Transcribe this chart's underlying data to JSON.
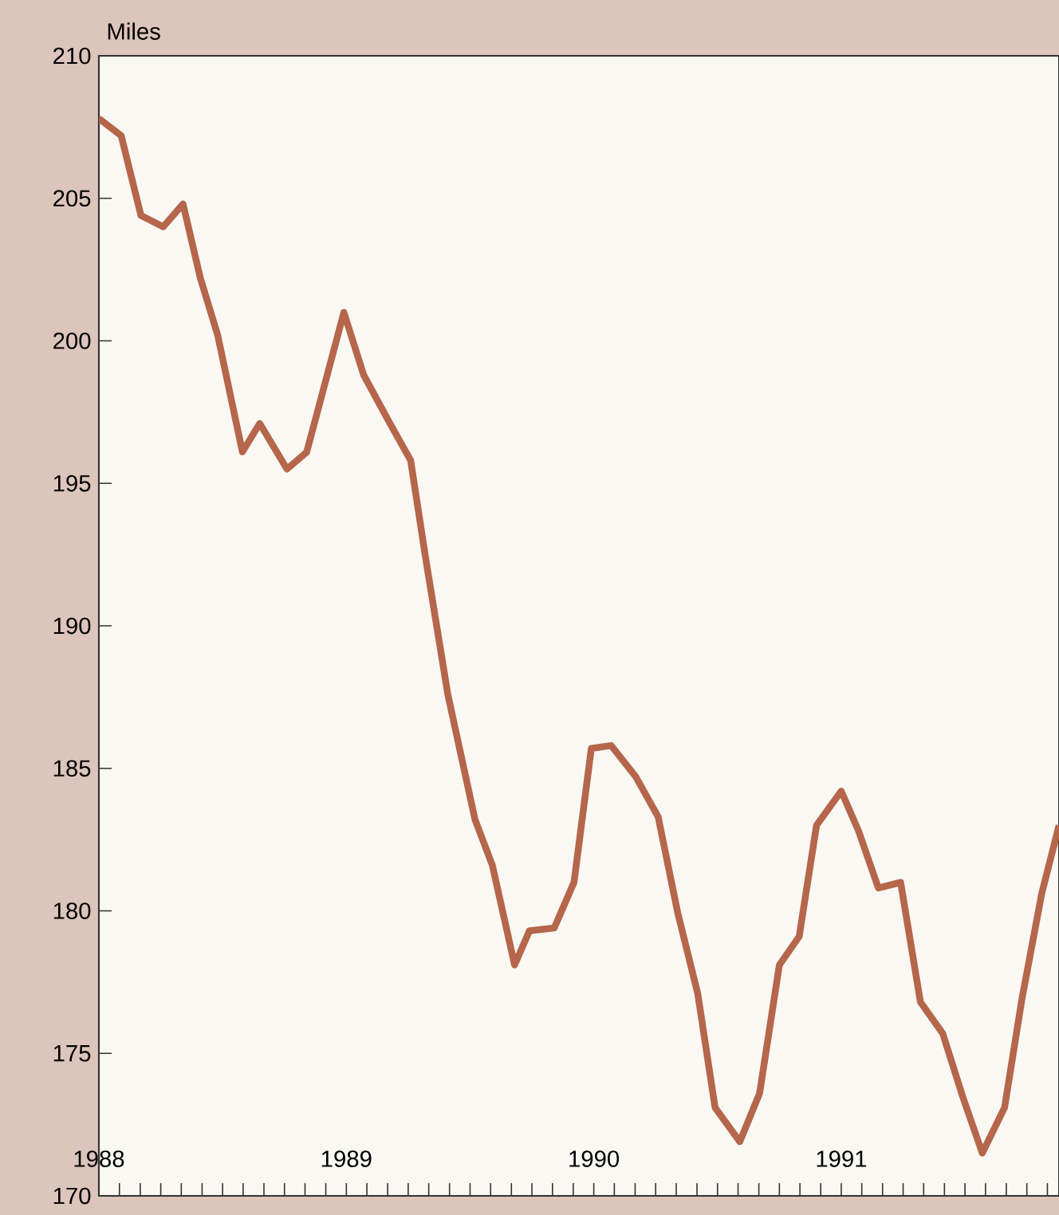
{
  "chart_data": {
    "type": "line",
    "ylabel": "Miles",
    "x": [
      1988.0,
      1988.09,
      1988.17,
      1988.26,
      1988.34,
      1988.41,
      1988.48,
      1988.58,
      1988.65,
      1988.76,
      1988.84,
      1988.99,
      1989.07,
      1989.17,
      1989.26,
      1989.32,
      1989.41,
      1989.52,
      1989.59,
      1989.68,
      1989.74,
      1989.84,
      1989.92,
      1989.99,
      1990.07,
      1990.17,
      1990.26,
      1990.34,
      1990.42,
      1990.49,
      1990.59,
      1990.67,
      1990.75,
      1990.83,
      1990.9,
      1991.0,
      1991.07,
      1991.15,
      1991.24,
      1991.32,
      1991.41,
      1991.49,
      1991.57,
      1991.66,
      1991.73,
      1991.81,
      1991.88
    ],
    "series": [
      {
        "color": "#b5664b",
        "values": [
          207.8,
          207.2,
          204.4,
          204.0,
          204.8,
          202.2,
          200.2,
          196.1,
          197.1,
          195.5,
          196.1,
          201.0,
          198.8,
          197.2,
          195.8,
          192.4,
          187.6,
          183.2,
          181.6,
          178.1,
          179.3,
          179.4,
          181.0,
          185.7,
          185.8,
          184.7,
          183.3,
          179.9,
          177.1,
          173.1,
          171.9,
          173.6,
          178.1,
          179.1,
          183.0,
          184.2,
          182.8,
          180.8,
          181.0,
          176.8,
          175.7,
          173.5,
          171.5,
          173.1,
          176.9,
          180.6,
          183.0
        ]
      }
    ],
    "xlim": [
      1988.0,
      1991.88
    ],
    "ylim": [
      170,
      210
    ],
    "yticks": [
      170,
      175,
      180,
      185,
      190,
      195,
      200,
      205,
      210
    ],
    "xticks": [
      {
        "value": 1988.0,
        "label": "1988"
      },
      {
        "value": 1988.083,
        "label": null
      },
      {
        "value": 1988.167,
        "label": null
      },
      {
        "value": 1988.25,
        "label": null
      },
      {
        "value": 1988.333,
        "label": null
      },
      {
        "value": 1988.417,
        "label": null
      },
      {
        "value": 1988.5,
        "label": null
      },
      {
        "value": 1988.583,
        "label": null
      },
      {
        "value": 1988.667,
        "label": null
      },
      {
        "value": 1988.75,
        "label": null
      },
      {
        "value": 1988.833,
        "label": null
      },
      {
        "value": 1988.917,
        "label": null
      },
      {
        "value": 1989.0,
        "label": "1989"
      },
      {
        "value": 1989.083,
        "label": null
      },
      {
        "value": 1989.167,
        "label": null
      },
      {
        "value": 1989.25,
        "label": null
      },
      {
        "value": 1989.333,
        "label": null
      },
      {
        "value": 1989.417,
        "label": null
      },
      {
        "value": 1989.5,
        "label": null
      },
      {
        "value": 1989.583,
        "label": null
      },
      {
        "value": 1989.667,
        "label": null
      },
      {
        "value": 1989.75,
        "label": null
      },
      {
        "value": 1989.833,
        "label": null
      },
      {
        "value": 1989.917,
        "label": null
      },
      {
        "value": 1990.0,
        "label": "1990"
      },
      {
        "value": 1990.083,
        "label": null
      },
      {
        "value": 1990.167,
        "label": null
      },
      {
        "value": 1990.25,
        "label": null
      },
      {
        "value": 1990.333,
        "label": null
      },
      {
        "value": 1990.417,
        "label": null
      },
      {
        "value": 1990.5,
        "label": null
      },
      {
        "value": 1990.583,
        "label": null
      },
      {
        "value": 1990.667,
        "label": null
      },
      {
        "value": 1990.75,
        "label": null
      },
      {
        "value": 1990.833,
        "label": null
      },
      {
        "value": 1990.917,
        "label": null
      },
      {
        "value": 1991.0,
        "label": "1991"
      },
      {
        "value": 1991.083,
        "label": null
      },
      {
        "value": 1991.167,
        "label": null
      },
      {
        "value": 1991.25,
        "label": null
      },
      {
        "value": 1991.333,
        "label": null
      },
      {
        "value": 1991.417,
        "label": null
      },
      {
        "value": 1991.5,
        "label": null
      },
      {
        "value": 1991.583,
        "label": null
      },
      {
        "value": 1991.667,
        "label": null
      },
      {
        "value": 1991.75,
        "label": null
      },
      {
        "value": 1991.833,
        "label": null
      }
    ],
    "grid": false,
    "marker": "none",
    "line_style": "solid"
  }
}
